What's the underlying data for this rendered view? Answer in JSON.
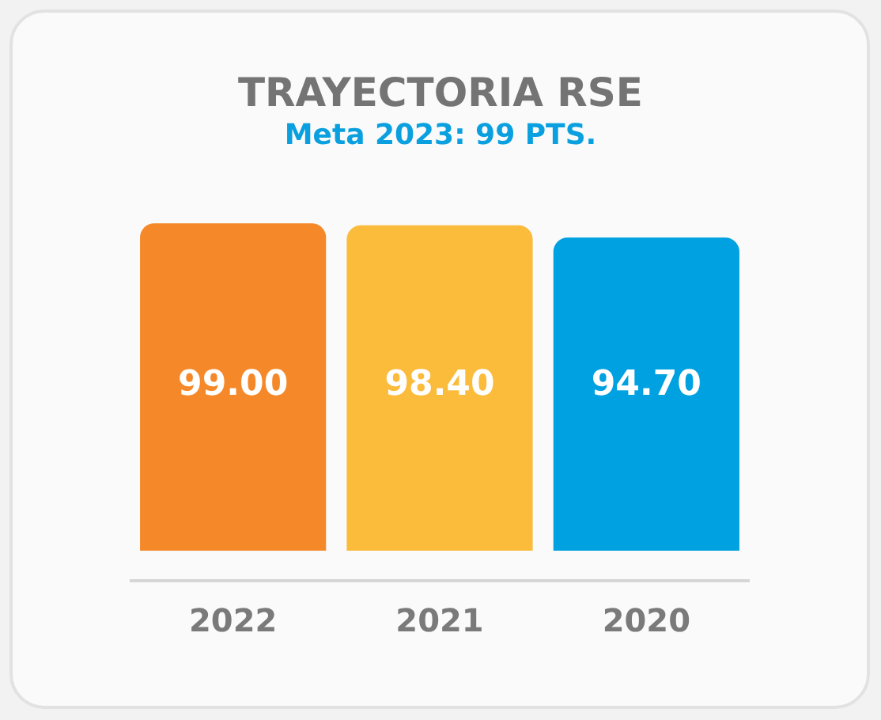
{
  "chart_data": {
    "type": "bar",
    "title": "TRAYECTORIA RSE",
    "subtitle": "Meta 2023: 99 PTS.",
    "categories": [
      "2022",
      "2021",
      "2020"
    ],
    "values": [
      99,
      98.4,
      94.7
    ],
    "colors": [
      "#f5892a",
      "#fbbb3b",
      "#00a1e1"
    ],
    "value_labels": [
      "99.00",
      "98.40",
      "94.70"
    ],
    "tick_labels": "x",
    "grid": false,
    "legend": false
  }
}
